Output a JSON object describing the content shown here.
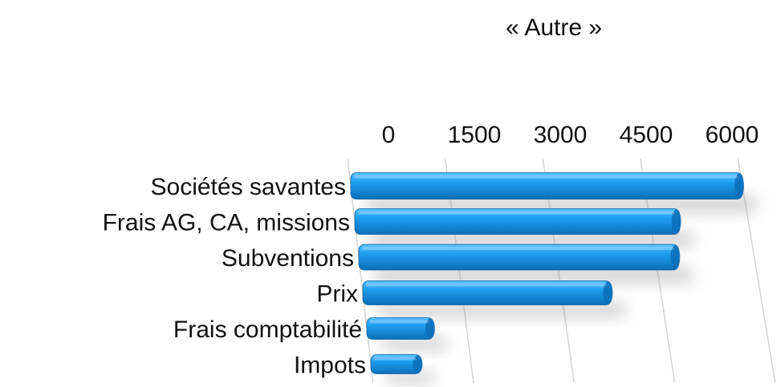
{
  "chart_data": {
    "type": "bar",
    "orientation": "horizontal",
    "style": "3d-perspective",
    "title": "« Autre »",
    "categories": [
      "Sociétés savantes",
      "Frais AG, CA, missions",
      "Subventions",
      "Prix",
      "Frais comptabilité",
      "Impots"
    ],
    "values": [
      6000,
      4950,
      4850,
      3750,
      1000,
      750
    ],
    "x_ticks": [
      "0",
      "1500",
      "3000",
      "4500",
      "6000"
    ],
    "xlim": [
      0,
      6000
    ],
    "xlabel": "",
    "ylabel": "",
    "grid": true,
    "legend": "none",
    "bar_color": "#1f9ff0",
    "bar_highlight": "#5cc3ff",
    "bar_shade": "#0b6fb8"
  }
}
